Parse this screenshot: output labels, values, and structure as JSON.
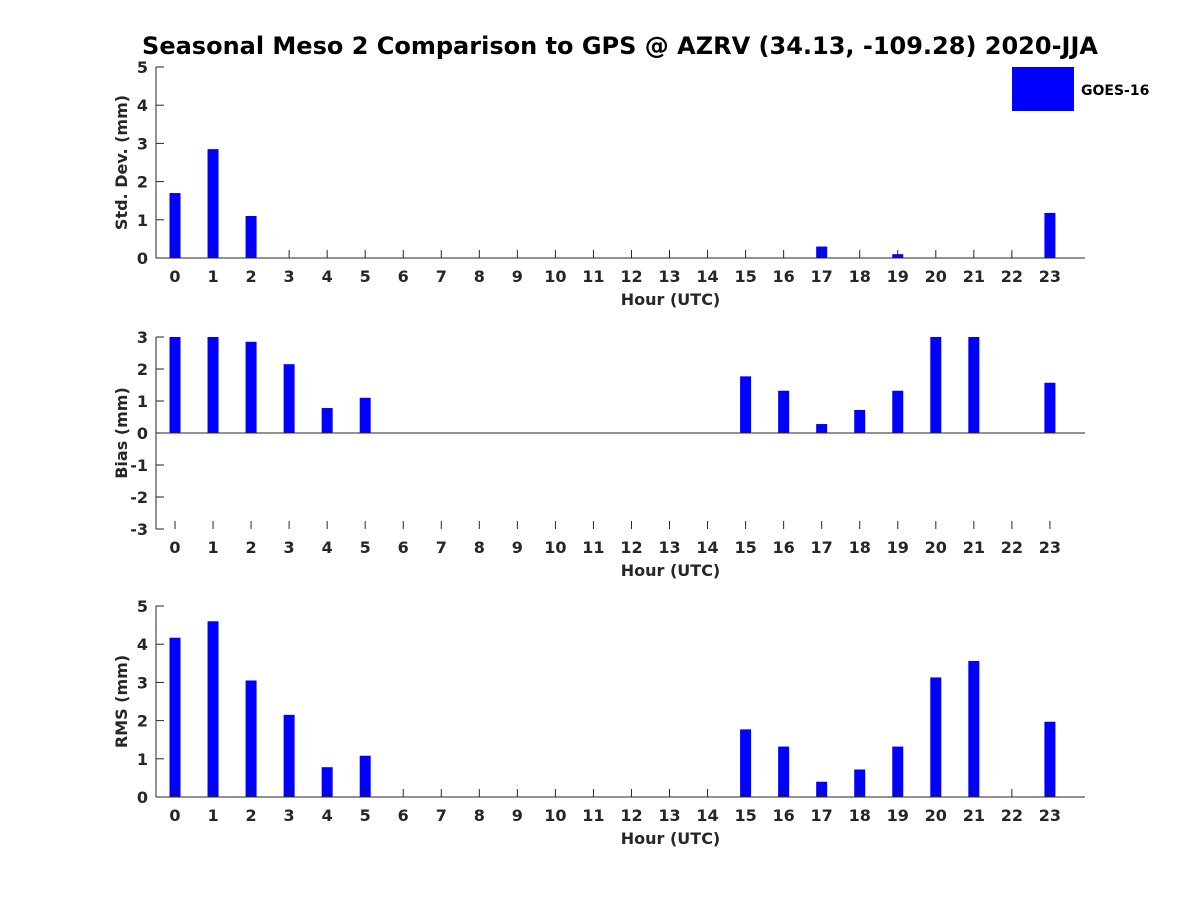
{
  "chart_data": {
    "title": "Seasonal Meso 2 Comparison to GPS @ AZRV (34.13, -109.28) 2020-JJA",
    "legend": {
      "label": "GOES-16",
      "color": "#0000ff",
      "placement": "top-right"
    },
    "categories": [
      "0",
      "1",
      "2",
      "3",
      "4",
      "5",
      "6",
      "7",
      "8",
      "9",
      "10",
      "11",
      "12",
      "13",
      "14",
      "15",
      "16",
      "17",
      "18",
      "19",
      "20",
      "21",
      "22",
      "23"
    ],
    "panels": [
      {
        "type": "bar",
        "xlabel": "Hour (UTC)",
        "ylabel": "Std. Dev. (mm)",
        "ylim": [
          0,
          5
        ],
        "yticks": [
          0,
          1,
          2,
          3,
          4,
          5
        ],
        "series": [
          {
            "name": "GOES-16",
            "values": [
              1.7,
              2.85,
              1.1,
              null,
              null,
              null,
              null,
              null,
              null,
              null,
              null,
              null,
              null,
              null,
              null,
              null,
              null,
              0.3,
              null,
              0.1,
              null,
              null,
              null,
              1.18
            ]
          }
        ]
      },
      {
        "type": "bar",
        "xlabel": "Hour (UTC)",
        "ylabel": "Bias (mm)",
        "ylim": [
          -3,
          3
        ],
        "yticks": [
          -3,
          -2,
          -1,
          0,
          1,
          2,
          3
        ],
        "series": [
          {
            "name": "GOES-16",
            "values": [
              3.0,
              3.0,
              2.85,
              2.15,
              0.78,
              1.1,
              null,
              null,
              null,
              null,
              null,
              null,
              null,
              null,
              null,
              1.77,
              1.32,
              0.28,
              0.72,
              1.32,
              3.0,
              3.0,
              null,
              1.57
            ]
          }
        ]
      },
      {
        "type": "bar",
        "xlabel": "Hour (UTC)",
        "ylabel": "RMS (mm)",
        "ylim": [
          0,
          5
        ],
        "yticks": [
          0,
          1,
          2,
          3,
          4,
          5
        ],
        "series": [
          {
            "name": "GOES-16",
            "values": [
              4.17,
              4.6,
              3.05,
              2.15,
              0.78,
              1.08,
              null,
              null,
              null,
              null,
              null,
              null,
              null,
              null,
              null,
              1.77,
              1.32,
              0.4,
              0.72,
              1.32,
              3.13,
              3.56,
              null,
              1.97
            ]
          }
        ]
      }
    ]
  }
}
